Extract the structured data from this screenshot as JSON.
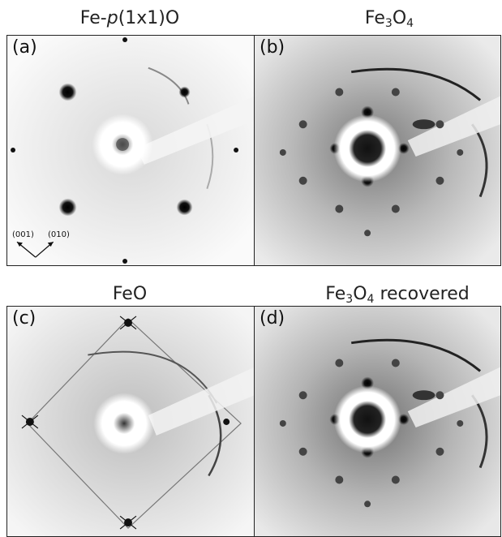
{
  "titles": {
    "a": {
      "pre": "Fe-",
      "ital": "p",
      "post": "(1x1)O"
    },
    "b": {
      "base": "Fe",
      "sub1": "3",
      "mid": "O",
      "sub2": "4",
      "post": ""
    },
    "c": {
      "text": "FeO"
    },
    "d": {
      "base": "Fe",
      "sub1": "3",
      "mid": "O",
      "sub2": "4",
      "post": " recovered"
    }
  },
  "panel_labels": {
    "a": "(a)",
    "b": "(b)",
    "c": "(c)",
    "d": "(d)"
  },
  "direction_labels": {
    "left": "(001)",
    "right": "(010)"
  },
  "colors": {
    "spot": "#0a0a0a",
    "border": "#222222"
  }
}
